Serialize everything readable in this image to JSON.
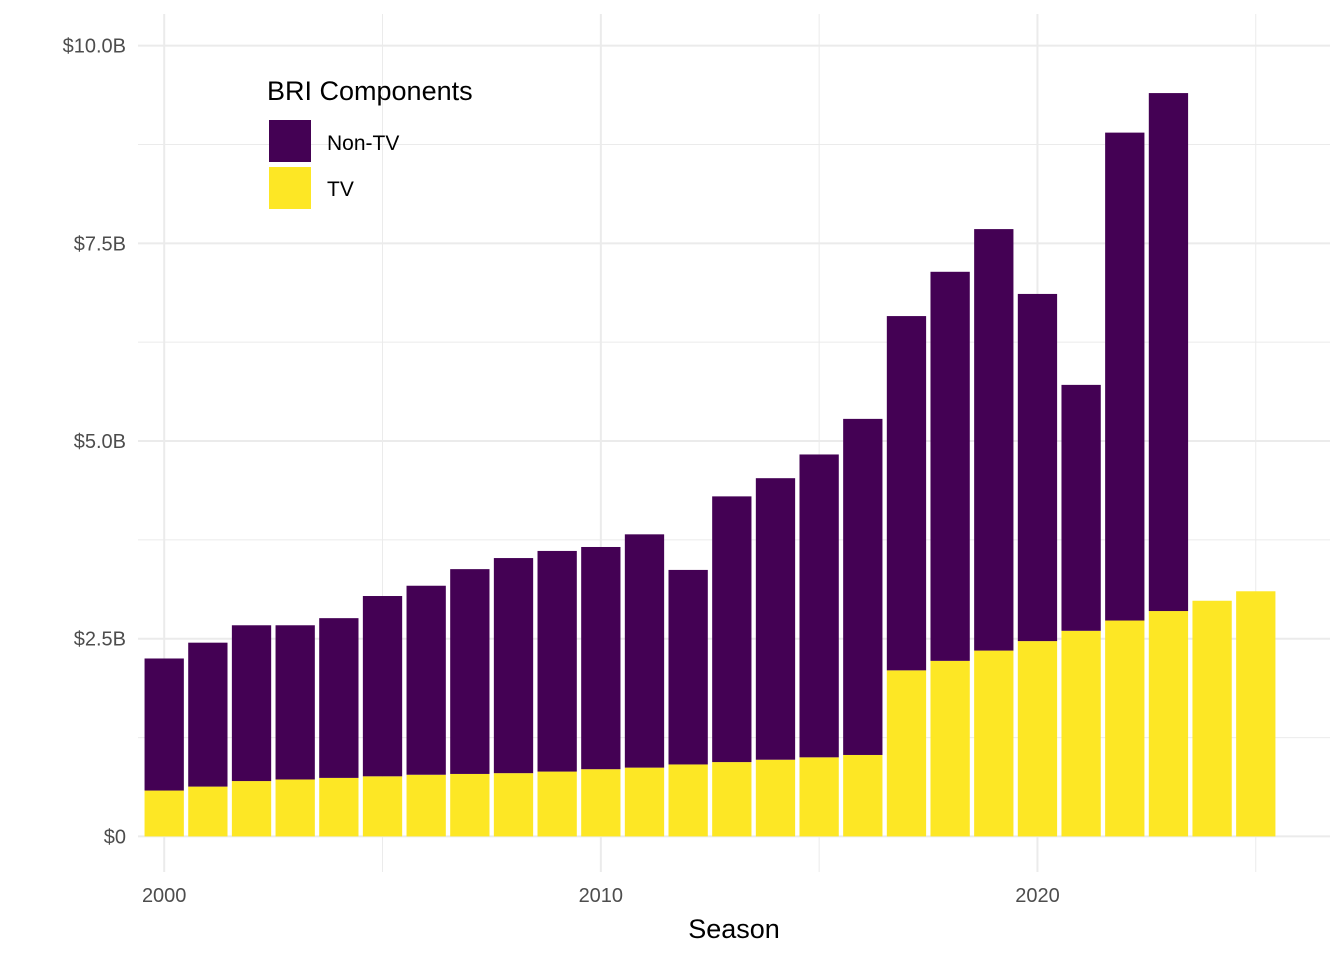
{
  "chart_data": {
    "type": "bar",
    "stacked": true,
    "title": "",
    "xlabel": "Season",
    "ylabel": "",
    "x": [
      2000,
      2001,
      2002,
      2003,
      2004,
      2005,
      2006,
      2007,
      2008,
      2009,
      2010,
      2011,
      2012,
      2013,
      2014,
      2015,
      2016,
      2017,
      2018,
      2019,
      2020,
      2021,
      2022,
      2023,
      2024,
      2025
    ],
    "series": [
      {
        "name": "TV",
        "color": "#FDE725",
        "values": [
          0.58,
          0.63,
          0.7,
          0.72,
          0.74,
          0.76,
          0.78,
          0.79,
          0.8,
          0.82,
          0.85,
          0.87,
          0.91,
          0.94,
          0.97,
          1.0,
          1.03,
          2.1,
          2.22,
          2.35,
          2.47,
          2.6,
          2.73,
          2.85,
          2.98,
          3.1
        ]
      },
      {
        "name": "Non-TV",
        "color": "#440154",
        "values": [
          1.67,
          1.82,
          1.97,
          1.95,
          2.02,
          2.28,
          2.39,
          2.59,
          2.72,
          2.79,
          2.81,
          2.95,
          2.46,
          3.36,
          3.56,
          3.83,
          4.25,
          4.48,
          4.92,
          5.33,
          4.39,
          3.11,
          6.17,
          6.55,
          0,
          0
        ]
      }
    ],
    "ylim": [
      -0.45,
      10.4
    ],
    "xlim": [
      1999.4,
      2026.7
    ],
    "y_ticks": [
      0,
      2.5,
      5.0,
      7.5,
      10.0
    ],
    "y_tick_labels": [
      "$0",
      "$2.5B",
      "$5.0B",
      "$7.5B",
      "$10.0B"
    ],
    "y_minor_ticks": [
      1.25,
      3.75,
      6.25,
      8.75
    ],
    "x_ticks": [
      2000,
      2010,
      2020
    ],
    "x_tick_labels": [
      "2000",
      "2010",
      "2020"
    ],
    "x_minor_ticks": [
      2005,
      2015,
      2025
    ],
    "grid": true,
    "legend": {
      "title": "BRI Components",
      "position": "top-left",
      "entries": [
        {
          "label": "Non-TV",
          "color": "#440154"
        },
        {
          "label": "TV",
          "color": "#FDE725"
        }
      ]
    }
  }
}
